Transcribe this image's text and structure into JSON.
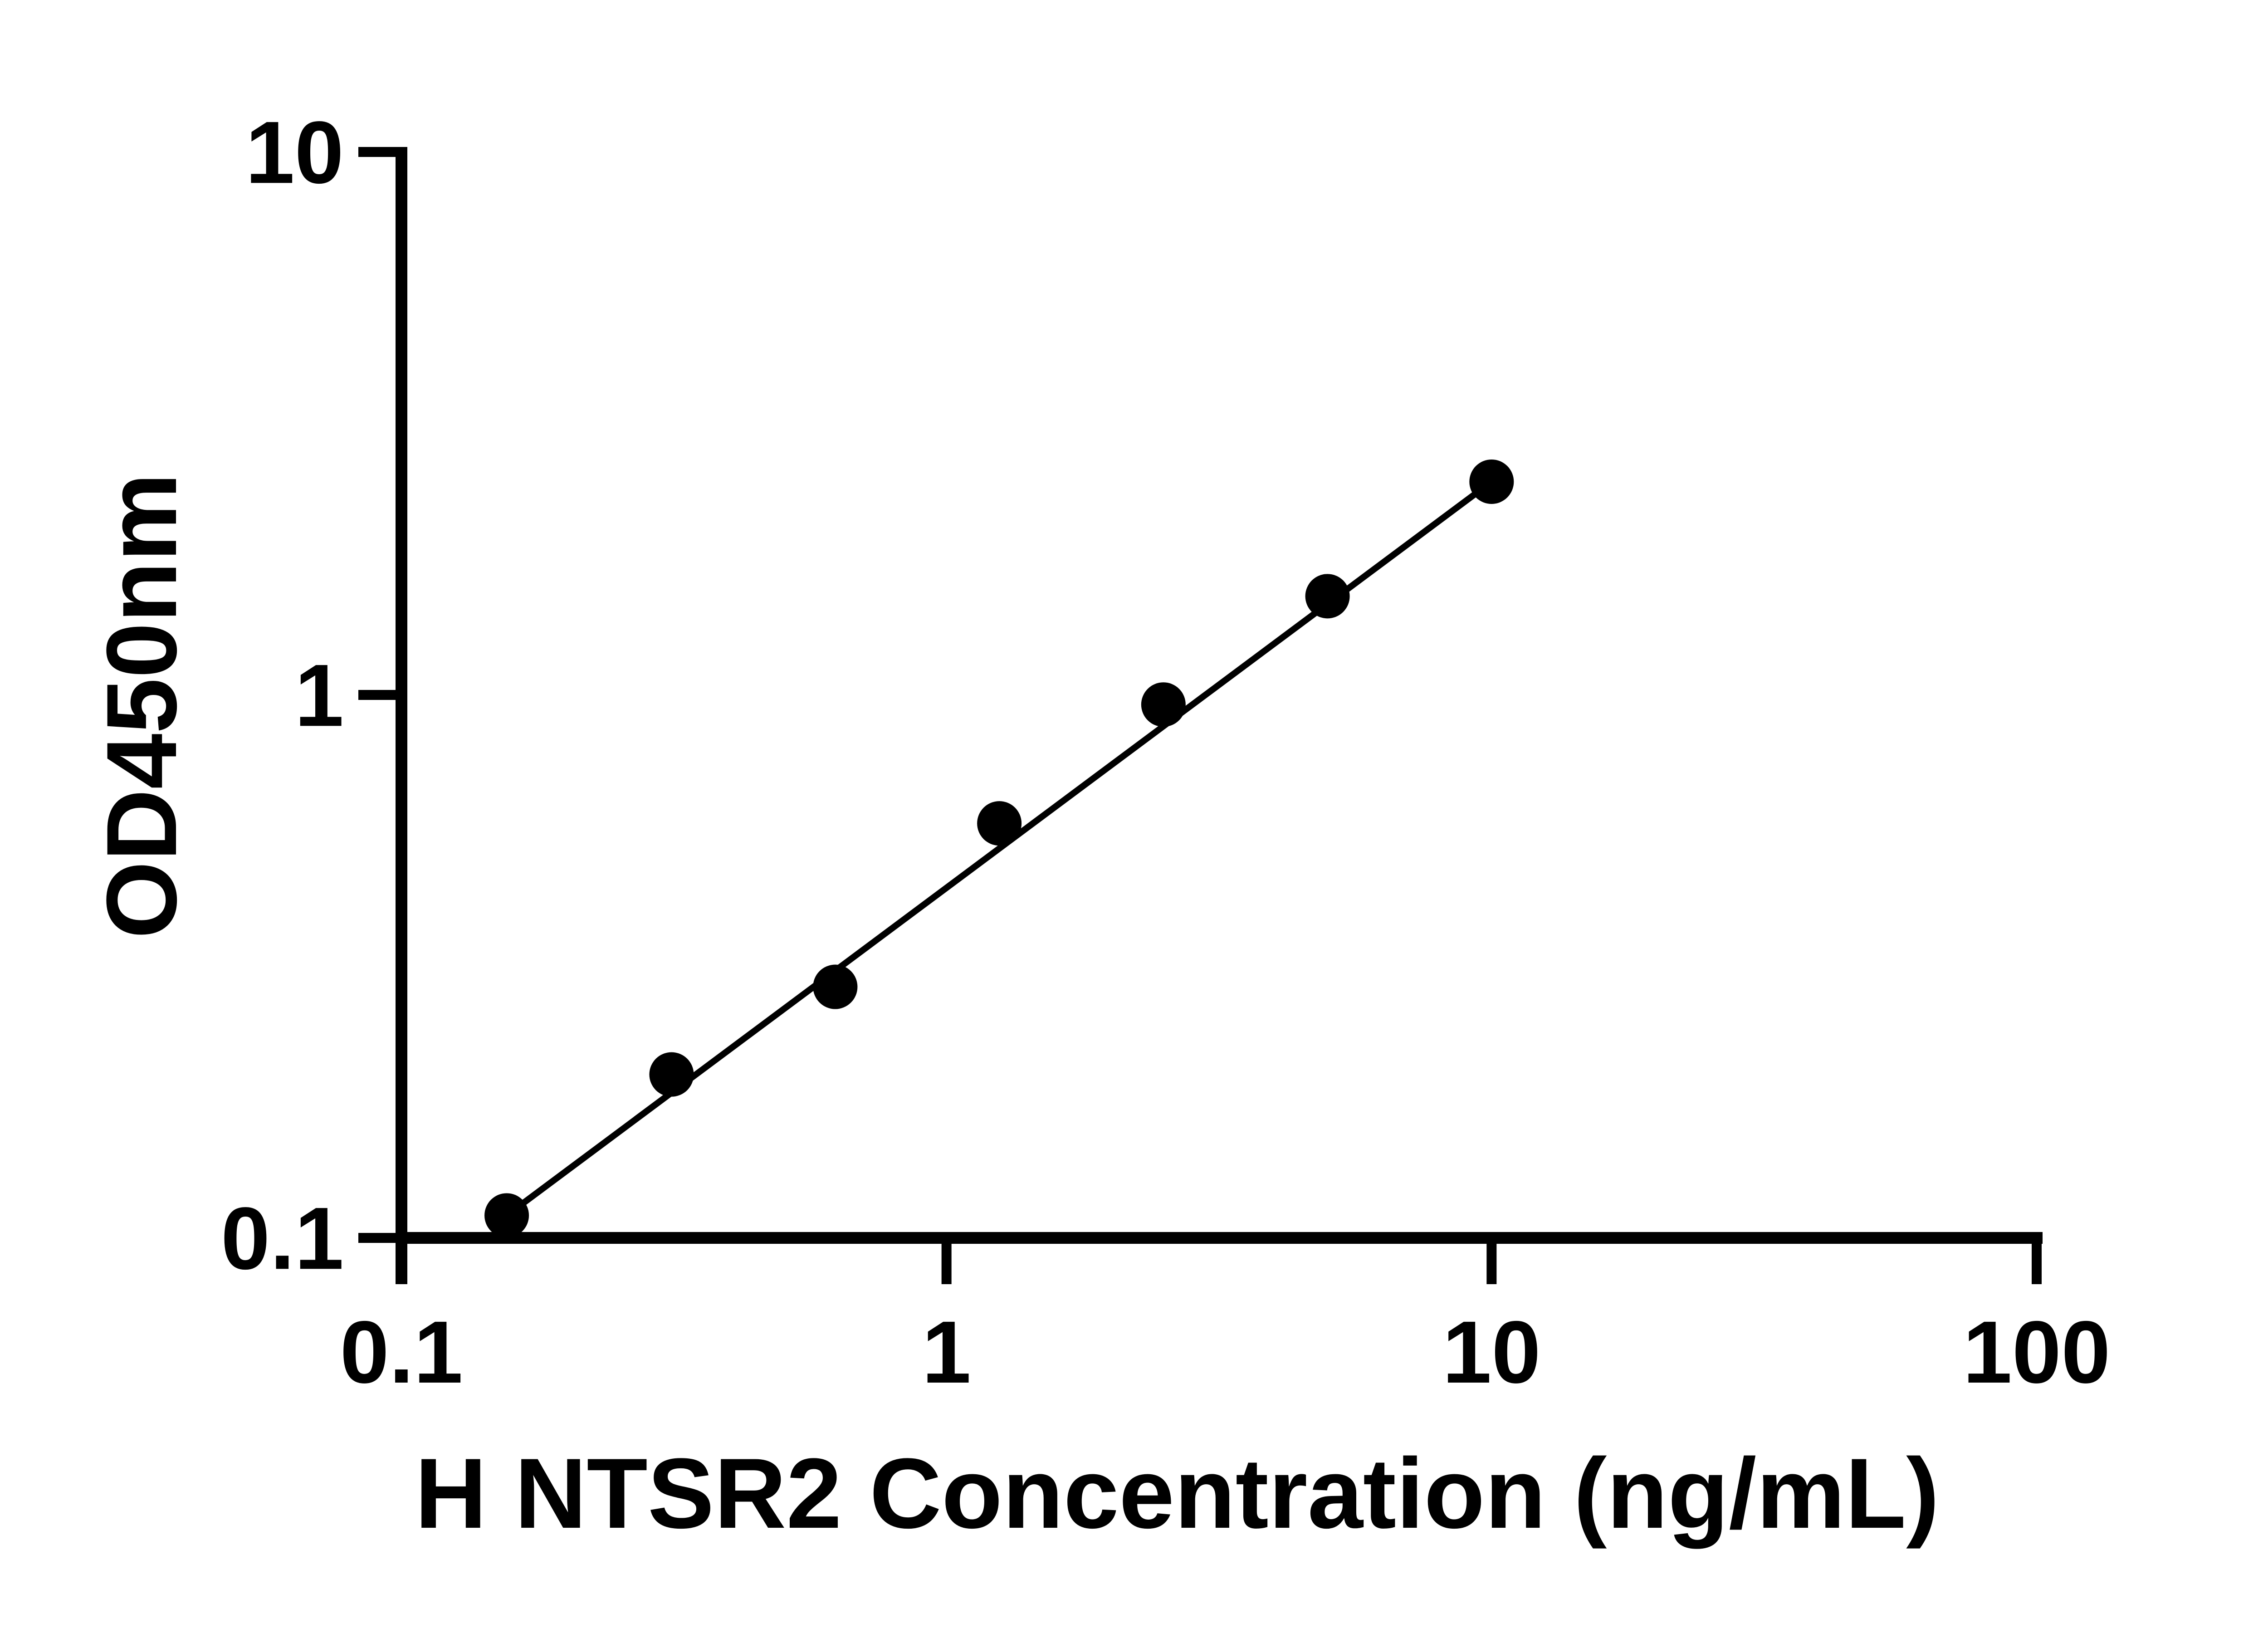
{
  "colors": {
    "background": "#ffffff",
    "ink": "#000000"
  },
  "chart_data": {
    "type": "scatter",
    "xlabel": "H NTSR2 Concentration (ng/mL)",
    "ylabel": "OD450nm",
    "x_scale": "log",
    "y_scale": "log",
    "xlim": [
      0.1,
      100
    ],
    "ylim": [
      0.1,
      10
    ],
    "grid": false,
    "legend": "none",
    "x_ticks": [
      {
        "value": 0.1,
        "label": "0.1"
      },
      {
        "value": 1,
        "label": "1"
      },
      {
        "value": 10,
        "label": "10"
      },
      {
        "value": 100,
        "label": "100"
      }
    ],
    "y_ticks": [
      {
        "value": 10,
        "label": "10"
      },
      {
        "value": 1,
        "label": "1"
      },
      {
        "value": 0.1,
        "label": "0.1"
      }
    ],
    "series": [
      {
        "marker": "filled-circle",
        "color": "#000000",
        "trendline": true,
        "points": [
          {
            "x": 0.156,
            "y": 0.11
          },
          {
            "x": 0.313,
            "y": 0.2
          },
          {
            "x": 0.625,
            "y": 0.29
          },
          {
            "x": 1.25,
            "y": 0.58
          },
          {
            "x": 2.5,
            "y": 0.96
          },
          {
            "x": 5,
            "y": 1.52
          },
          {
            "x": 10,
            "y": 2.47
          }
        ]
      }
    ]
  }
}
